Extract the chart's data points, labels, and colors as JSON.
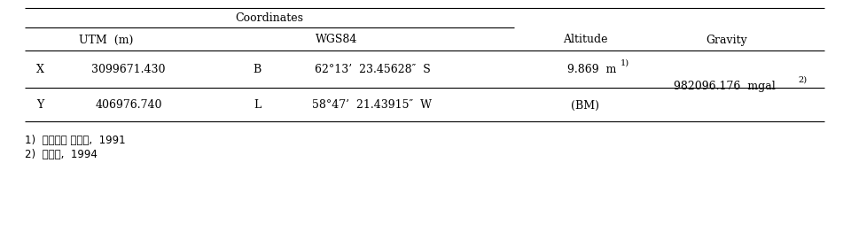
{
  "fig_width": 9.51,
  "fig_height": 2.55,
  "bg_color": "#ffffff",
  "text_color": "#000000",
  "font_size": 9,
  "footnote_font_size": 8.5,
  "header_coords": "Coordinates",
  "header_utm": "UTM  (m)",
  "header_wgs": "WGS84",
  "header_altitude": "Altitude",
  "header_gravity": "Gravity",
  "row1_coord": "X",
  "row1_utm": "3099671.430",
  "row1_wgs_label": "B",
  "row1_wgs_val": "62°13’  23.45628″  S",
  "row1_altitude": "9.869  m",
  "row1_altitude_sup": "1)",
  "row2_coord": "Y",
  "row2_utm": "406976.740",
  "row2_wgs_label": "L",
  "row2_wgs_val": "58°47’  21.43915″  W",
  "row2_altitude": "(BM)",
  "gravity_val": "982096.176  mgal",
  "gravity_sup": "2)",
  "fn1": "1)  유홍뢡과 권수제,  1991",
  "fn2": "2)  남상현,  1994"
}
